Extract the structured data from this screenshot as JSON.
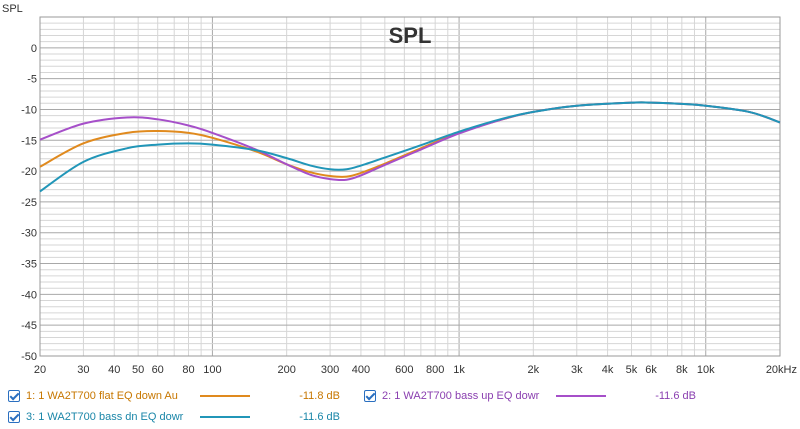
{
  "chart_data": {
    "type": "line",
    "title": "SPL",
    "ylabel": "SPL",
    "xlabel": "",
    "x_scale": "log",
    "xlim": [
      20,
      20000
    ],
    "ylim": [
      -50,
      5
    ],
    "grid": true,
    "y_ticks": [
      "0",
      "-5",
      "-10",
      "-15",
      "-20",
      "-25",
      "-30",
      "-35",
      "-40",
      "-45",
      "-50"
    ],
    "x_ticks": [
      {
        "v": 20,
        "label": "20"
      },
      {
        "v": 30,
        "label": "30"
      },
      {
        "v": 40,
        "label": "40"
      },
      {
        "v": 50,
        "label": "50"
      },
      {
        "v": 60,
        "label": "60"
      },
      {
        "v": 80,
        "label": "80"
      },
      {
        "v": 100,
        "label": "100"
      },
      {
        "v": 200,
        "label": "200"
      },
      {
        "v": 300,
        "label": "300"
      },
      {
        "v": 400,
        "label": "400"
      },
      {
        "v": 600,
        "label": "600"
      },
      {
        "v": 800,
        "label": "800"
      },
      {
        "v": 1000,
        "label": "1k"
      },
      {
        "v": 2000,
        "label": "2k"
      },
      {
        "v": 3000,
        "label": "3k"
      },
      {
        "v": 4000,
        "label": "4k"
      },
      {
        "v": 5000,
        "label": "5k"
      },
      {
        "v": 6000,
        "label": "6k"
      },
      {
        "v": 8000,
        "label": "8k"
      },
      {
        "v": 10000,
        "label": "10k"
      },
      {
        "v": 20000,
        "label": "20kHz"
      }
    ],
    "series": [
      {
        "name": "1: 1 WA2T700 flat EQ down Au",
        "value_label": "-11.8 dB",
        "color": "#e08a1e",
        "points": [
          [
            20,
            -19.3
          ],
          [
            30,
            -15.5
          ],
          [
            45,
            -13.8
          ],
          [
            60,
            -13.5
          ],
          [
            80,
            -13.8
          ],
          [
            100,
            -14.6
          ],
          [
            150,
            -16.8
          ],
          [
            200,
            -18.9
          ],
          [
            250,
            -20.2
          ],
          [
            300,
            -20.8
          ],
          [
            350,
            -20.9
          ],
          [
            400,
            -20.3
          ],
          [
            500,
            -18.8
          ],
          [
            700,
            -16.3
          ],
          [
            1000,
            -13.8
          ],
          [
            1500,
            -11.6
          ],
          [
            2000,
            -10.4
          ],
          [
            3000,
            -9.4
          ],
          [
            5000,
            -8.9
          ],
          [
            6000,
            -8.9
          ],
          [
            8000,
            -9.1
          ],
          [
            10000,
            -9.4
          ],
          [
            15000,
            -10.4
          ],
          [
            20000,
            -12.1
          ]
        ]
      },
      {
        "name": "2: 1 WA2T700 bass up EQ dowr",
        "value_label": "-11.6 dB",
        "color": "#a64fc9",
        "points": [
          [
            20,
            -14.9
          ],
          [
            30,
            -12.3
          ],
          [
            45,
            -11.3
          ],
          [
            60,
            -11.6
          ],
          [
            80,
            -12.6
          ],
          [
            100,
            -13.8
          ],
          [
            150,
            -16.5
          ],
          [
            200,
            -18.9
          ],
          [
            250,
            -20.6
          ],
          [
            300,
            -21.3
          ],
          [
            350,
            -21.4
          ],
          [
            400,
            -20.7
          ],
          [
            500,
            -19.0
          ],
          [
            700,
            -16.5
          ],
          [
            1000,
            -13.9
          ],
          [
            1500,
            -11.6
          ],
          [
            2000,
            -10.4
          ],
          [
            3000,
            -9.4
          ],
          [
            5000,
            -8.9
          ],
          [
            6000,
            -8.9
          ],
          [
            8000,
            -9.1
          ],
          [
            10000,
            -9.4
          ],
          [
            15000,
            -10.4
          ],
          [
            20000,
            -12.1
          ]
        ]
      },
      {
        "name": "3: 1 WA2T700 bass dn EQ dowr",
        "value_label": "-11.6 dB",
        "color": "#2196b8",
        "points": [
          [
            20,
            -23.3
          ],
          [
            30,
            -18.5
          ],
          [
            45,
            -16.3
          ],
          [
            60,
            -15.7
          ],
          [
            80,
            -15.5
          ],
          [
            100,
            -15.7
          ],
          [
            150,
            -16.6
          ],
          [
            200,
            -17.9
          ],
          [
            250,
            -19.1
          ],
          [
            300,
            -19.7
          ],
          [
            350,
            -19.7
          ],
          [
            400,
            -19.1
          ],
          [
            500,
            -17.8
          ],
          [
            700,
            -15.8
          ],
          [
            1000,
            -13.6
          ],
          [
            1500,
            -11.5
          ],
          [
            2000,
            -10.4
          ],
          [
            3000,
            -9.4
          ],
          [
            5000,
            -8.9
          ],
          [
            6000,
            -8.9
          ],
          [
            8000,
            -9.1
          ],
          [
            10000,
            -9.4
          ],
          [
            15000,
            -10.4
          ],
          [
            20000,
            -12.1
          ]
        ]
      }
    ]
  }
}
